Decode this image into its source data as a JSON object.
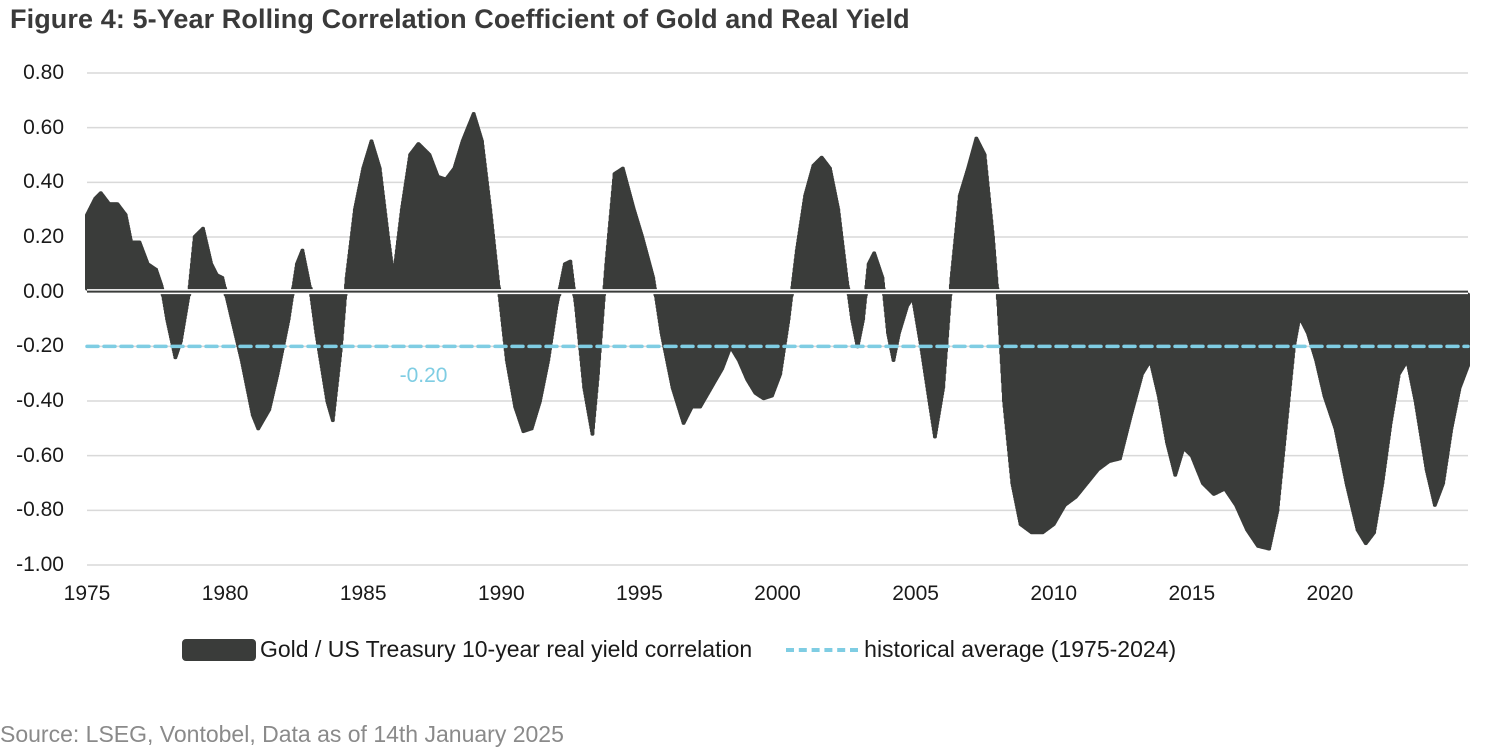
{
  "figure": {
    "title": "Figure 4: 5-Year Rolling Correlation Coefficient of Gold and Real Yield",
    "source": "Source: LSEG, Vontobel, Data as of 14th January 2025",
    "average_label": "-0.20",
    "colors": {
      "area": "#3a3c3a",
      "average_line": "#7fcde3",
      "gridline": "#d9d9d9",
      "title": "#3a3a3a",
      "source": "#8a8a8a"
    }
  },
  "legend": {
    "items": [
      {
        "label": "Gold / US Treasury 10-year real yield correlation",
        "type": "area"
      },
      {
        "label": "historical average (1975-2024)",
        "type": "dashed-line"
      }
    ]
  },
  "axes": {
    "y_ticks": [
      "0.80",
      "0.60",
      "0.40",
      "0.20",
      "0.00",
      "-0.20",
      "-0.40",
      "-0.60",
      "-0.80",
      "-1.00"
    ],
    "x_ticks": [
      "1975",
      "1980",
      "1985",
      "1990",
      "1995",
      "2000",
      "2005",
      "2010",
      "2015",
      "2020"
    ]
  },
  "chart_data": {
    "type": "area",
    "title": "Figure 4: 5-Year Rolling Correlation Coefficient of Gold and Real Yield",
    "xlabel": "",
    "ylabel": "",
    "xlim": [
      1975,
      2025
    ],
    "ylim": [
      -1.0,
      0.8
    ],
    "y_tick_values": [
      0.8,
      0.6,
      0.4,
      0.2,
      0.0,
      -0.2,
      -0.4,
      -0.6,
      -0.8,
      -1.0
    ],
    "x_tick_values": [
      1975,
      1980,
      1985,
      1990,
      1995,
      2000,
      2005,
      2010,
      2015,
      2020
    ],
    "grid": true,
    "legend_position": "bottom",
    "series": [
      {
        "name": "Gold / US Treasury 10-year real yield correlation",
        "type": "area",
        "x": [
          1975.0,
          1975.3,
          1975.5,
          1975.8,
          1976.1,
          1976.4,
          1976.6,
          1976.9,
          1977.2,
          1977.5,
          1977.7,
          1977.9,
          1978.2,
          1978.4,
          1978.7,
          1978.9,
          1979.2,
          1979.5,
          1979.7,
          1979.9,
          1980.2,
          1980.6,
          1981.0,
          1981.2,
          1981.6,
          1981.9,
          1982.3,
          1982.6,
          1982.8,
          1983.1,
          1983.3,
          1983.7,
          1983.9,
          1984.2,
          1984.4,
          1984.7,
          1985.0,
          1985.3,
          1985.6,
          1985.9,
          1986.1,
          1986.4,
          1986.7,
          1987.0,
          1987.4,
          1987.7,
          1988.0,
          1988.3,
          1988.6,
          1989.0,
          1989.3,
          1989.6,
          1989.9,
          1990.2,
          1990.5,
          1990.8,
          1991.1,
          1991.4,
          1991.7,
          1992.0,
          1992.3,
          1992.5,
          1992.7,
          1993.0,
          1993.3,
          1993.5,
          1993.8,
          1994.1,
          1994.4,
          1994.8,
          1995.1,
          1995.5,
          1995.8,
          1996.2,
          1996.6,
          1996.9,
          1997.2,
          1997.6,
          1998.0,
          1998.3,
          1998.6,
          1998.9,
          1999.2,
          1999.5,
          1999.8,
          2000.1,
          2000.4,
          2000.7,
          2001.0,
          2001.3,
          2001.6,
          2001.9,
          2002.2,
          2002.5,
          2002.7,
          2002.9,
          2003.1,
          2003.3,
          2003.5,
          2003.8,
          2004.0,
          2004.2,
          2004.4,
          2004.7,
          2004.9,
          2005.2,
          2005.5,
          2005.7,
          2006.0,
          2006.3,
          2006.6,
          2006.9,
          2007.2,
          2007.5,
          2007.8,
          2008.0,
          2008.2,
          2008.5,
          2008.8,
          2009.2,
          2009.6,
          2010.0,
          2010.4,
          2010.8,
          2011.2,
          2011.6,
          2012.0,
          2012.4,
          2012.8,
          2013.2,
          2013.5,
          2013.8,
          2014.1,
          2014.4,
          2014.7,
          2015.0,
          2015.4,
          2015.8,
          2016.2,
          2016.6,
          2017.0,
          2017.4,
          2017.8,
          2018.1,
          2018.4,
          2018.7,
          2018.9,
          2019.2,
          2019.5,
          2019.8,
          2020.2,
          2020.6,
          2021.0,
          2021.3,
          2021.6,
          2021.9,
          2022.2,
          2022.5,
          2022.8,
          2023.1,
          2023.5,
          2023.8,
          2024.1,
          2024.4,
          2024.7,
          2025.0
        ],
        "values": [
          0.28,
          0.34,
          0.36,
          0.32,
          0.32,
          0.28,
          0.18,
          0.18,
          0.1,
          0.08,
          0.02,
          -0.1,
          -0.24,
          -0.18,
          0.0,
          0.2,
          0.23,
          0.1,
          0.06,
          0.05,
          -0.08,
          -0.25,
          -0.45,
          -0.5,
          -0.43,
          -0.3,
          -0.1,
          0.1,
          0.15,
          0.0,
          -0.15,
          -0.4,
          -0.47,
          -0.2,
          0.05,
          0.3,
          0.45,
          0.55,
          0.45,
          0.2,
          0.05,
          0.3,
          0.5,
          0.54,
          0.5,
          0.42,
          0.41,
          0.45,
          0.55,
          0.65,
          0.55,
          0.3,
          0.02,
          -0.25,
          -0.42,
          -0.51,
          -0.5,
          -0.4,
          -0.25,
          -0.05,
          0.1,
          0.11,
          -0.05,
          -0.35,
          -0.52,
          -0.3,
          0.1,
          0.43,
          0.45,
          0.3,
          0.2,
          0.05,
          -0.15,
          -0.35,
          -0.48,
          -0.42,
          -0.42,
          -0.35,
          -0.28,
          -0.2,
          -0.25,
          -0.32,
          -0.37,
          -0.39,
          -0.38,
          -0.3,
          -0.1,
          0.15,
          0.35,
          0.46,
          0.49,
          0.45,
          0.3,
          0.05,
          -0.1,
          -0.2,
          -0.1,
          0.1,
          0.14,
          0.05,
          -0.15,
          -0.25,
          -0.15,
          -0.05,
          -0.02,
          -0.2,
          -0.4,
          -0.53,
          -0.35,
          0.05,
          0.35,
          0.45,
          0.56,
          0.5,
          0.2,
          -0.05,
          -0.4,
          -0.7,
          -0.85,
          -0.88,
          -0.88,
          -0.85,
          -0.78,
          -0.75,
          -0.7,
          -0.65,
          -0.62,
          -0.61,
          -0.45,
          -0.3,
          -0.25,
          -0.38,
          -0.55,
          -0.67,
          -0.57,
          -0.6,
          -0.7,
          -0.74,
          -0.72,
          -0.78,
          -0.87,
          -0.93,
          -0.94,
          -0.8,
          -0.5,
          -0.2,
          -0.09,
          -0.15,
          -0.25,
          -0.38,
          -0.5,
          -0.7,
          -0.87,
          -0.92,
          -0.88,
          -0.7,
          -0.48,
          -0.3,
          -0.25,
          -0.4,
          -0.65,
          -0.78,
          -0.7,
          -0.5,
          -0.35,
          -0.27
        ]
      },
      {
        "name": "historical average (1975-2024)",
        "type": "line",
        "style": "dashed",
        "x": [
          1975,
          2025
        ],
        "values": [
          -0.2,
          -0.2
        ]
      }
    ],
    "annotations": [
      {
        "text": "-0.20",
        "x": 1986.5,
        "y": -0.31,
        "color": "#7fcde3"
      }
    ]
  }
}
